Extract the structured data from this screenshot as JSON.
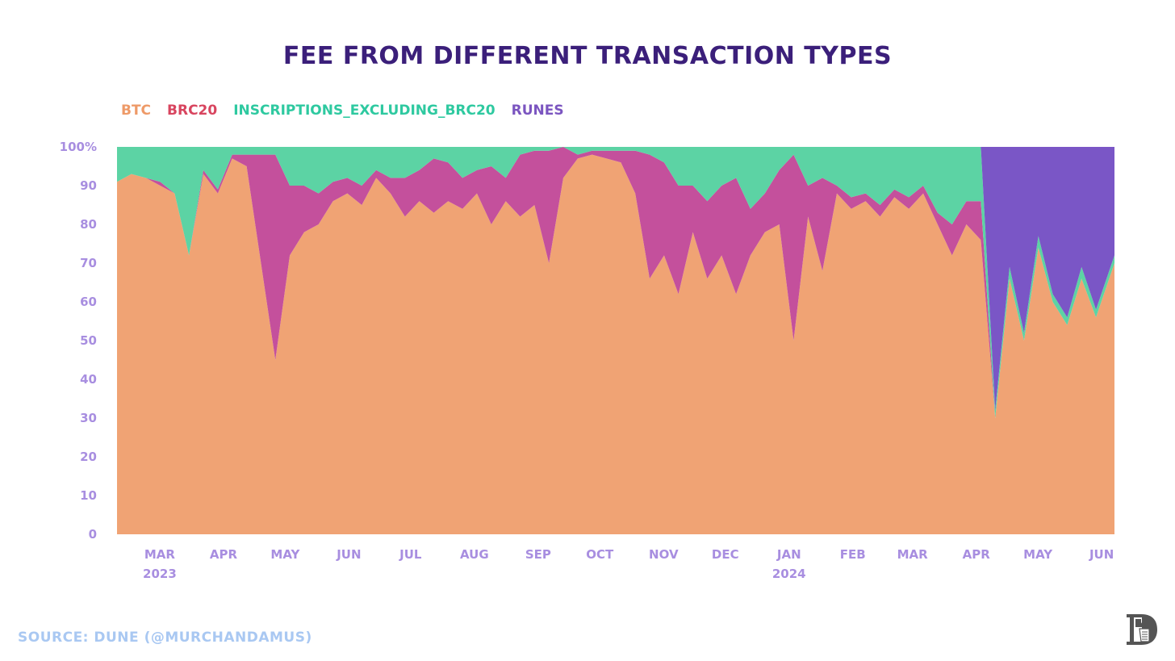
{
  "chart_data": {
    "type": "area",
    "stacked": true,
    "normalized": true,
    "title": "FEE FROM DIFFERENT TRANSACTION TYPES",
    "legend_position": "top-left",
    "grid": false,
    "ylim": [
      0,
      100
    ],
    "y_ticks": [
      {
        "value": 0,
        "label": "0"
      },
      {
        "value": 10,
        "label": "10"
      },
      {
        "value": 20,
        "label": "20"
      },
      {
        "value": 30,
        "label": "30"
      },
      {
        "value": 40,
        "label": "40"
      },
      {
        "value": 50,
        "label": "50"
      },
      {
        "value": 60,
        "label": "60"
      },
      {
        "value": 70,
        "label": "70"
      },
      {
        "value": 80,
        "label": "80"
      },
      {
        "value": 90,
        "label": "90"
      },
      {
        "value": 100,
        "label": "100%"
      }
    ],
    "x_ticks": [
      {
        "date": "2023-03-01",
        "label": "MAR",
        "sublabel": "2023"
      },
      {
        "date": "2023-04-01",
        "label": "APR"
      },
      {
        "date": "2023-05-01",
        "label": "MAY"
      },
      {
        "date": "2023-06-01",
        "label": "JUN"
      },
      {
        "date": "2023-07-01",
        "label": "JUL"
      },
      {
        "date": "2023-08-01",
        "label": "AUG"
      },
      {
        "date": "2023-09-01",
        "label": "SEP"
      },
      {
        "date": "2023-10-01",
        "label": "OCT"
      },
      {
        "date": "2023-11-01",
        "label": "NOV"
      },
      {
        "date": "2023-12-01",
        "label": "DEC"
      },
      {
        "date": "2024-01-01",
        "label": "JAN",
        "sublabel": "2024"
      },
      {
        "date": "2024-02-01",
        "label": "FEB"
      },
      {
        "date": "2024-03-01",
        "label": "MAR"
      },
      {
        "date": "2024-04-01",
        "label": "APR"
      },
      {
        "date": "2024-05-01",
        "label": "MAY"
      },
      {
        "date": "2024-06-01",
        "label": "JUN"
      }
    ],
    "series": [
      {
        "name": "BTC",
        "color": "#f0a374",
        "legend_color": "#ee9a68"
      },
      {
        "name": "BRC20",
        "color": "#c4509c",
        "legend_color": "#d8455f"
      },
      {
        "name": "INSCRIPTIONS_EXCLUDING_BRC20",
        "color": "#5cd3a4",
        "legend_color": "#2ec9a0"
      },
      {
        "name": "RUNES",
        "color": "#7a56c6",
        "legend_color": "#7b55c0"
      }
    ],
    "x": [
      "2023-02-20",
      "2023-02-27",
      "2023-03-06",
      "2023-03-13",
      "2023-03-20",
      "2023-03-27",
      "2023-04-03",
      "2023-04-10",
      "2023-04-17",
      "2023-04-24",
      "2023-05-01",
      "2023-05-08",
      "2023-05-15",
      "2023-05-22",
      "2023-05-29",
      "2023-06-05",
      "2023-06-12",
      "2023-06-19",
      "2023-06-26",
      "2023-07-03",
      "2023-07-10",
      "2023-07-17",
      "2023-07-24",
      "2023-07-31",
      "2023-08-07",
      "2023-08-14",
      "2023-08-21",
      "2023-08-28",
      "2023-09-04",
      "2023-09-11",
      "2023-09-18",
      "2023-09-25",
      "2023-10-02",
      "2023-10-09",
      "2023-10-16",
      "2023-10-23",
      "2023-10-30",
      "2023-11-06",
      "2023-11-13",
      "2023-11-20",
      "2023-11-27",
      "2023-12-04",
      "2023-12-11",
      "2023-12-18",
      "2023-12-25",
      "2024-01-01",
      "2024-01-08",
      "2024-01-15",
      "2024-01-22",
      "2024-01-29",
      "2024-02-05",
      "2024-02-12",
      "2024-02-19",
      "2024-02-26",
      "2024-03-04",
      "2024-03-11",
      "2024-03-18",
      "2024-03-25",
      "2024-04-01",
      "2024-04-08",
      "2024-04-15",
      "2024-04-22",
      "2024-04-29",
      "2024-05-06",
      "2024-05-13",
      "2024-05-20",
      "2024-05-27",
      "2024-06-03",
      "2024-06-10",
      "2024-06-19"
    ],
    "values": {
      "BTC": [
        91,
        93,
        92,
        90,
        88,
        72,
        93,
        88,
        97,
        95,
        70,
        45,
        72,
        78,
        80,
        86,
        88,
        85,
        92,
        88,
        82,
        86,
        83,
        86,
        84,
        88,
        80,
        86,
        82,
        85,
        70,
        92,
        97,
        98,
        97,
        96,
        88,
        66,
        72,
        62,
        78,
        66,
        72,
        62,
        72,
        78,
        80,
        50,
        82,
        68,
        88,
        84,
        86,
        82,
        87,
        84,
        88,
        80,
        72,
        80,
        76,
        30,
        66,
        50,
        74,
        60,
        54,
        66,
        56,
        70
      ],
      "BRC20": [
        0,
        0,
        0,
        1,
        0,
        0,
        1,
        1,
        1,
        3,
        28,
        53,
        18,
        12,
        8,
        5,
        4,
        5,
        2,
        4,
        10,
        8,
        14,
        10,
        8,
        6,
        15,
        6,
        16,
        14,
        29,
        8,
        1,
        1,
        2,
        3,
        11,
        32,
        24,
        28,
        12,
        20,
        18,
        30,
        12,
        10,
        14,
        48,
        8,
        24,
        2,
        3,
        2,
        3,
        2,
        3,
        2,
        3,
        8,
        6,
        10,
        0,
        0,
        0,
        0,
        0,
        0,
        0,
        0,
        0
      ],
      "INSCRIPTIONS_EXCLUDING_BRC20": [
        9,
        7,
        8,
        9,
        12,
        28,
        6,
        11,
        2,
        2,
        2,
        2,
        10,
        10,
        12,
        9,
        8,
        10,
        6,
        8,
        8,
        6,
        3,
        4,
        8,
        6,
        5,
        8,
        2,
        1,
        1,
        0,
        2,
        1,
        1,
        1,
        1,
        2,
        4,
        10,
        10,
        14,
        10,
        8,
        16,
        12,
        6,
        2,
        10,
        8,
        10,
        13,
        12,
        15,
        11,
        13,
        10,
        17,
        20,
        14,
        14,
        2,
        3,
        2,
        3,
        2,
        2,
        3,
        2,
        2
      ],
      "RUNES": [
        0,
        0,
        0,
        0,
        0,
        0,
        0,
        0,
        0,
        0,
        0,
        0,
        0,
        0,
        0,
        0,
        0,
        0,
        0,
        0,
        0,
        0,
        0,
        0,
        0,
        0,
        0,
        0,
        0,
        0,
        0,
        0,
        0,
        0,
        0,
        0,
        0,
        0,
        0,
        0,
        0,
        0,
        0,
        0,
        0,
        0,
        0,
        0,
        0,
        0,
        0,
        0,
        0,
        0,
        0,
        0,
        0,
        0,
        0,
        0,
        0,
        68,
        31,
        48,
        23,
        38,
        44,
        31,
        42,
        28
      ]
    }
  },
  "source": "SOURCE: DUNE (@MURCHANDAMUS)",
  "logo_text": "PR"
}
